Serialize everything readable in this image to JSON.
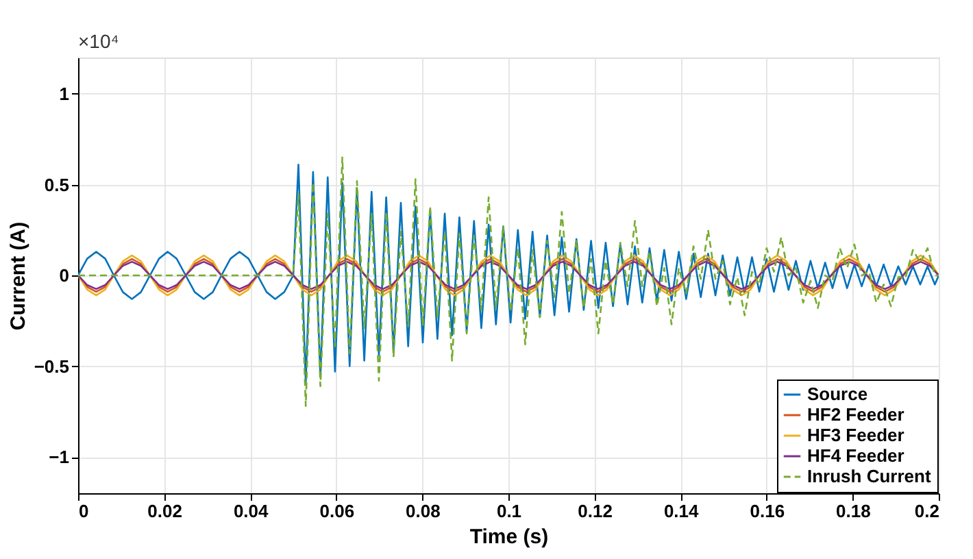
{
  "chart_data": {
    "type": "line",
    "xlabel": "Time (s)",
    "ylabel": "Current (A)",
    "annotations": [
      "×10⁴"
    ],
    "xlim": [
      0,
      0.2
    ],
    "xticks": [
      0,
      0.02,
      0.04,
      0.06,
      0.08,
      0.1,
      0.12,
      0.14,
      0.16,
      0.18,
      0.2
    ],
    "ylim": [
      -1.2,
      1.2
    ],
    "yticks": [
      -1,
      -0.5,
      0,
      0.5,
      1
    ],
    "grid": true,
    "legend": "bottom right",
    "marker": "none",
    "x": [
      0,
      0.0021,
      0.0042,
      0.0063,
      0.0083,
      0.0104,
      0.0125,
      0.0146,
      0.0167,
      0.0188,
      0.0208,
      0.0229,
      0.025,
      0.0271,
      0.0292,
      0.0313,
      0.0333,
      0.0354,
      0.0375,
      0.0396,
      0.0417,
      0.0438,
      0.0458,
      0.0479,
      0.05,
      0.0521,
      0.0542,
      0.0563,
      0.0583,
      0.0604,
      0.0625,
      0.0646,
      0.0667,
      0.0688,
      0.0708,
      0.0729,
      0.075,
      0.0771,
      0.0792,
      0.0813,
      0.0833,
      0.0854,
      0.0875,
      0.0896,
      0.0917,
      0.0938,
      0.0958,
      0.0979,
      0.1,
      0.1021,
      0.1042,
      0.1063,
      0.1083,
      0.1104,
      0.1125,
      0.1146,
      0.1167,
      0.1188,
      0.1208,
      0.1229,
      0.125,
      0.1271,
      0.1292,
      0.1313,
      0.1333,
      0.1354,
      0.1375,
      0.1396,
      0.1417,
      0.1438,
      0.1458,
      0.1479,
      0.15,
      0.1521,
      0.1542,
      0.1563,
      0.1583,
      0.1604,
      0.1625,
      0.1646,
      0.1667,
      0.1688,
      0.1708,
      0.1729,
      0.175,
      0.1771,
      0.1792,
      0.1813,
      0.1833,
      0.1854,
      0.1875,
      0.1896,
      0.1917,
      0.1938,
      0.1958,
      0.1979,
      0.2
    ],
    "series": [
      {
        "name": "Source",
        "color": "#0072bd",
        "line_style": "solid",
        "x": [
          0,
          0.0021,
          0.0042,
          0.0063,
          0.0083,
          0.0104,
          0.0125,
          0.0146,
          0.0167,
          0.0188,
          0.0208,
          0.0229,
          0.025,
          0.0271,
          0.0292,
          0.0313,
          0.0333,
          0.0354,
          0.0375,
          0.0396,
          0.0417,
          0.0438,
          0.0458,
          0.0479,
          0.05,
          0.0512,
          0.0529,
          0.0546,
          0.0563,
          0.058,
          0.0597,
          0.0614,
          0.0631,
          0.0648,
          0.0665,
          0.0682,
          0.0699,
          0.0716,
          0.0733,
          0.075,
          0.0767,
          0.0784,
          0.0801,
          0.0818,
          0.0835,
          0.0852,
          0.0869,
          0.0886,
          0.0903,
          0.092,
          0.0937,
          0.0954,
          0.0971,
          0.0988,
          0.1005,
          0.1022,
          0.1039,
          0.1056,
          0.1073,
          0.109,
          0.1107,
          0.1124,
          0.1141,
          0.1158,
          0.1175,
          0.1192,
          0.1209,
          0.1226,
          0.1243,
          0.126,
          0.1277,
          0.1294,
          0.1311,
          0.1328,
          0.1345,
          0.1362,
          0.1379,
          0.1396,
          0.1413,
          0.143,
          0.1447,
          0.1464,
          0.1481,
          0.1498,
          0.1515,
          0.1532,
          0.1549,
          0.1566,
          0.1583,
          0.16,
          0.1617,
          0.1634,
          0.1651,
          0.1668,
          0.1685,
          0.1702,
          0.1719,
          0.1736,
          0.1753,
          0.177,
          0.1787,
          0.1804,
          0.1821,
          0.1838,
          0.1855,
          0.1872,
          0.1889,
          0.1906,
          0.1923,
          0.194,
          0.1957,
          0.1974,
          0.1991,
          0.2
        ],
        "values": [
          0,
          0.092,
          0.13,
          0.092,
          0,
          -0.092,
          -0.13,
          -0.092,
          0,
          0.092,
          0.13,
          0.092,
          0,
          -0.092,
          -0.13,
          -0.092,
          0,
          0.092,
          0.13,
          0.092,
          0,
          -0.092,
          -0.13,
          -0.092,
          0,
          0.61,
          -0.59,
          0.57,
          -0.56,
          0.54,
          -0.53,
          0.51,
          -0.5,
          0.48,
          -0.47,
          0.46,
          -0.44,
          0.43,
          -0.42,
          0.4,
          -0.39,
          0.38,
          -0.37,
          0.36,
          -0.35,
          0.34,
          -0.33,
          0.32,
          -0.31,
          0.3,
          -0.29,
          0.28,
          -0.27,
          0.27,
          -0.26,
          0.25,
          -0.24,
          0.24,
          -0.23,
          0.22,
          -0.22,
          0.21,
          -0.2,
          0.2,
          -0.19,
          0.19,
          -0.18,
          0.18,
          -0.17,
          0.17,
          -0.16,
          0.16,
          -0.15,
          0.15,
          -0.14,
          0.14,
          -0.14,
          0.13,
          -0.13,
          0.12,
          -0.12,
          0.12,
          -0.11,
          0.11,
          -0.11,
          0.1,
          -0.1,
          0.1,
          -0.09,
          0.09,
          -0.09,
          0.09,
          -0.08,
          0.08,
          -0.08,
          0.08,
          -0.07,
          0.07,
          -0.07,
          0.07,
          -0.07,
          0.06,
          -0.06,
          0.06,
          -0.06,
          0.06,
          -0.06,
          0.05,
          -0.05,
          0.05,
          -0.05,
          0.05,
          -0.05,
          0
        ]
      },
      {
        "name": "HF2 Feeder",
        "color": "#d95319",
        "line_style": "solid",
        "values": [
          0,
          -0.064,
          -0.09,
          -0.064,
          0,
          0.064,
          0.09,
          0.064,
          0,
          -0.064,
          -0.09,
          -0.064,
          0,
          0.064,
          0.09,
          0.064,
          0,
          -0.064,
          -0.09,
          -0.064,
          0,
          0.064,
          0.09,
          0.064,
          0,
          -0.064,
          -0.09,
          -0.064,
          0,
          0.064,
          0.09,
          0.064,
          0,
          -0.064,
          -0.09,
          -0.064,
          0,
          0.064,
          0.09,
          0.064,
          0,
          -0.064,
          -0.09,
          -0.064,
          0,
          0.064,
          0.09,
          0.064,
          0,
          -0.064,
          -0.09,
          -0.064,
          0,
          0.064,
          0.09,
          0.064,
          0,
          -0.064,
          -0.09,
          -0.064,
          0,
          0.064,
          0.09,
          0.064,
          0,
          -0.064,
          -0.09,
          -0.064,
          0,
          0.064,
          0.09,
          0.064,
          0,
          -0.064,
          -0.09,
          -0.064,
          0,
          0.064,
          0.09,
          0.064,
          0,
          -0.064,
          -0.09,
          -0.064,
          0,
          0.064,
          0.09,
          0.064,
          0,
          -0.064,
          -0.09,
          -0.064,
          0,
          0.064,
          0.09,
          0.064,
          0
        ]
      },
      {
        "name": "HF3 Feeder",
        "color": "#edb120",
        "line_style": "solid",
        "values": [
          0,
          -0.078,
          -0.11,
          -0.078,
          0,
          0.078,
          0.11,
          0.078,
          0,
          -0.078,
          -0.11,
          -0.078,
          0,
          0.078,
          0.11,
          0.078,
          0,
          -0.078,
          -0.11,
          -0.078,
          0,
          0.078,
          0.11,
          0.078,
          0,
          -0.078,
          -0.11,
          -0.078,
          0,
          0.078,
          0.11,
          0.078,
          0,
          -0.078,
          -0.11,
          -0.078,
          0,
          0.078,
          0.11,
          0.078,
          0,
          -0.078,
          -0.11,
          -0.078,
          0,
          0.078,
          0.11,
          0.078,
          0,
          -0.078,
          -0.11,
          -0.078,
          0,
          0.078,
          0.11,
          0.078,
          0,
          -0.078,
          -0.11,
          -0.078,
          0,
          0.078,
          0.11,
          0.078,
          0,
          -0.078,
          -0.11,
          -0.078,
          0,
          0.078,
          0.11,
          0.078,
          0,
          -0.078,
          -0.11,
          -0.078,
          0,
          0.078,
          0.11,
          0.078,
          0,
          -0.078,
          -0.11,
          -0.078,
          0,
          0.078,
          0.11,
          0.078,
          0,
          -0.078,
          -0.11,
          -0.078,
          0,
          0.078,
          0.11,
          0.078,
          0
        ]
      },
      {
        "name": "HF4 Feeder",
        "color": "#7e2f8e",
        "line_style": "solid",
        "values": [
          0,
          -0.053,
          -0.075,
          -0.053,
          0,
          0.053,
          0.075,
          0.053,
          0,
          -0.053,
          -0.075,
          -0.053,
          0,
          0.053,
          0.075,
          0.053,
          0,
          -0.053,
          -0.075,
          -0.053,
          0,
          0.053,
          0.075,
          0.053,
          0,
          -0.053,
          -0.075,
          -0.053,
          0,
          0.053,
          0.075,
          0.053,
          0,
          -0.053,
          -0.075,
          -0.053,
          0,
          0.053,
          0.075,
          0.053,
          0,
          -0.053,
          -0.075,
          -0.053,
          0,
          0.053,
          0.075,
          0.053,
          0,
          -0.053,
          -0.075,
          -0.053,
          0,
          0.053,
          0.075,
          0.053,
          0,
          -0.053,
          -0.075,
          -0.053,
          0,
          0.053,
          0.075,
          0.053,
          0,
          -0.053,
          -0.075,
          -0.053,
          0,
          0.053,
          0.075,
          0.053,
          0,
          -0.053,
          -0.075,
          -0.053,
          0,
          0.053,
          0.075,
          0.053,
          0,
          -0.053,
          -0.075,
          -0.053,
          0,
          0.053,
          0.075,
          0.053,
          0,
          -0.053,
          -0.075,
          -0.053,
          0,
          0.053,
          0.075,
          0.053,
          0
        ]
      },
      {
        "name": "Inrush Current",
        "color": "#77ac30",
        "line_style": "dashed",
        "x": [
          0,
          0.05,
          0.0512,
          0.0529,
          0.0546,
          0.0563,
          0.058,
          0.0597,
          0.0614,
          0.0631,
          0.0648,
          0.0665,
          0.0682,
          0.0699,
          0.0716,
          0.0733,
          0.075,
          0.0767,
          0.0784,
          0.0801,
          0.0818,
          0.0835,
          0.0852,
          0.0869,
          0.0886,
          0.0903,
          0.092,
          0.0937,
          0.0954,
          0.0971,
          0.0988,
          0.1005,
          0.1022,
          0.1039,
          0.1056,
          0.1073,
          0.109,
          0.1107,
          0.1124,
          0.1141,
          0.1158,
          0.1175,
          0.1192,
          0.1209,
          0.1226,
          0.1243,
          0.126,
          0.1277,
          0.1294,
          0.1311,
          0.1328,
          0.1345,
          0.1362,
          0.1379,
          0.1396,
          0.1413,
          0.143,
          0.1447,
          0.1464,
          0.1481,
          0.1498,
          0.1515,
          0.1532,
          0.1549,
          0.1566,
          0.1583,
          0.16,
          0.1617,
          0.1634,
          0.1651,
          0.1668,
          0.1685,
          0.1702,
          0.1719,
          0.1736,
          0.1753,
          0.177,
          0.1787,
          0.1804,
          0.1821,
          0.1838,
          0.1855,
          0.1872,
          0.1889,
          0.1906,
          0.1923,
          0.194,
          0.1957,
          0.1974,
          0.1991,
          0.2
        ],
        "values": [
          0,
          0,
          0.45,
          -0.72,
          0.51,
          -0.61,
          0.34,
          -0.39,
          0.65,
          -0.43,
          0.52,
          -0.29,
          0.34,
          -0.58,
          0.35,
          -0.45,
          0.24,
          -0.28,
          0.53,
          -0.28,
          0.38,
          -0.23,
          0.24,
          -0.47,
          0.23,
          -0.32,
          0.22,
          -0.19,
          0.43,
          -0.18,
          0.27,
          -0.2,
          0.15,
          -0.38,
          0.14,
          -0.23,
          0.19,
          -0.12,
          0.35,
          -0.1,
          0.19,
          -0.18,
          0.09,
          -0.32,
          0.08,
          -0.16,
          0.18,
          -0.06,
          0.3,
          -0.06,
          0.13,
          -0.17,
          0.04,
          -0.27,
          0.04,
          -0.1,
          0.16,
          -0.02,
          0.25,
          -0.02,
          0.08,
          -0.16,
          -0.01,
          -0.22,
          0.02,
          -0.05,
          0.15,
          0.02,
          0.21,
          0,
          0.04,
          -0.15,
          -0.03,
          -0.18,
          0,
          -0.03,
          0.15,
          0.04,
          0.17,
          0,
          0.02,
          -0.15,
          -0.05,
          -0.17,
          -0.01,
          -0.01,
          0.14,
          0.07,
          0.15,
          0,
          0
        ]
      }
    ]
  }
}
